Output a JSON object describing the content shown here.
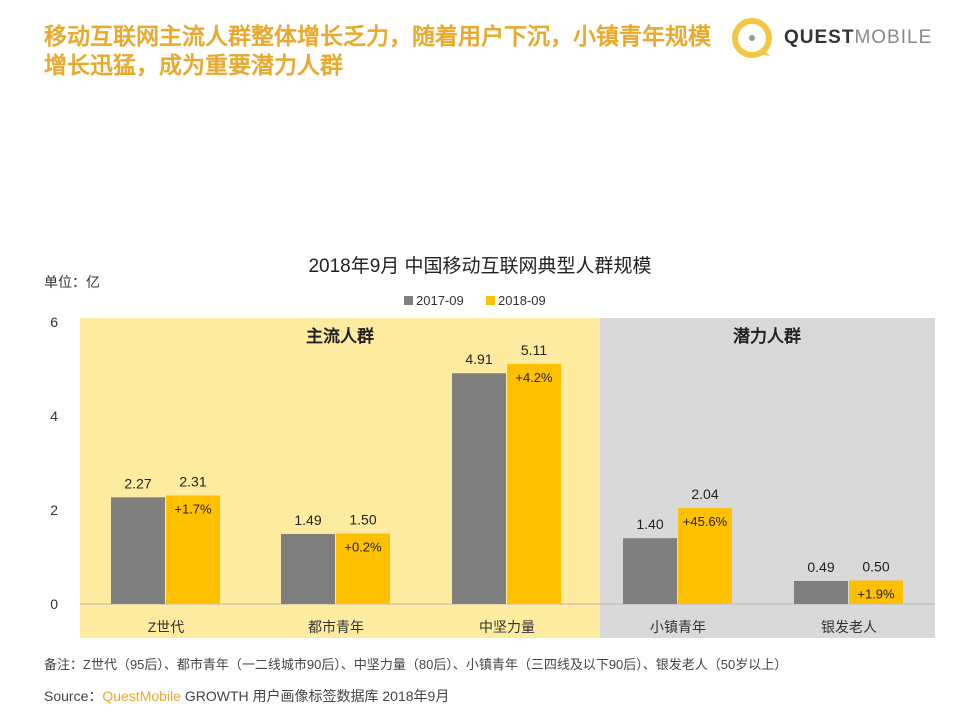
{
  "headline": "移动互联网主流人群整体增长乏力，随着用户下沉，小镇青年规模增长迅猛，成为重要潜力人群",
  "logo": {
    "bold": "QUEST",
    "light": "MOBILE"
  },
  "chart_data": {
    "type": "bar",
    "title": "2018年9月 中国移动互联网典型人群规模",
    "ylabel": "单位：亿",
    "ylim": [
      0,
      6
    ],
    "yticks": [
      0,
      2,
      4,
      6
    ],
    "categories": [
      "Z世代",
      "都市青年",
      "中坚力量",
      "小镇青年",
      "银发老人"
    ],
    "series": [
      {
        "name": "2017-09",
        "color": "#7f7f7f",
        "values": [
          2.27,
          1.49,
          4.91,
          1.4,
          0.49
        ]
      },
      {
        "name": "2018-09",
        "color": "#ffc000",
        "values": [
          2.31,
          1.5,
          5.11,
          2.04,
          0.5
        ]
      }
    ],
    "growth_labels": [
      "+1.7%",
      "+0.2%",
      "+4.2%",
      "+45.6%",
      "+1.9%"
    ],
    "groups": [
      {
        "label": "主流人群",
        "color": "#fdeba0"
      },
      {
        "label": "潜力人群",
        "color": "#d9d9d9"
      }
    ],
    "legend_position": "top-center"
  },
  "note": "备注：Z世代（95后）、都市青年（一二线城市90后）、中坚力量（80后）、小镇青年（三四线及以下90后）、银发老人（50岁以上）",
  "source": {
    "prefix": "Source：",
    "brand": "QuestMobile",
    "rest": " GROWTH 用户画像标签数据库 2018年9月"
  }
}
